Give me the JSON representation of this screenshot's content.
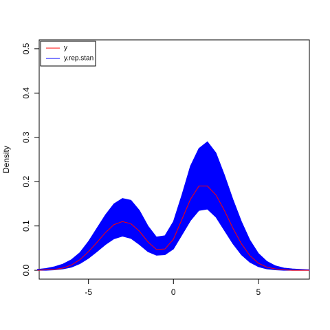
{
  "chart_data": {
    "type": "line",
    "y_label": "Density",
    "x": [
      -8,
      -7.5,
      -7,
      -6.5,
      -6,
      -5.5,
      -5,
      -4.5,
      -4,
      -3.5,
      -3,
      -2.5,
      -2,
      -1.5,
      -1,
      -0.5,
      0,
      0.5,
      1,
      1.5,
      2,
      2.5,
      3,
      3.5,
      4,
      4.5,
      5,
      5.5,
      6,
      6.5,
      7,
      7.5,
      8
    ],
    "series": [
      {
        "name": "y",
        "color": "#ff0000",
        "values": [
          0,
          0.001,
          0.002,
          0.005,
          0.012,
          0.024,
          0.042,
          0.063,
          0.085,
          0.103,
          0.11,
          0.105,
          0.088,
          0.064,
          0.047,
          0.048,
          0.07,
          0.115,
          0.16,
          0.19,
          0.19,
          0.17,
          0.135,
          0.095,
          0.06,
          0.033,
          0.016,
          0.007,
          0.003,
          0.001,
          0,
          0,
          0
        ]
      },
      {
        "name": "y.rep.stan",
        "color": "#0000ff",
        "lower": [
          0,
          0,
          0.001,
          0.003,
          0.007,
          0.015,
          0.027,
          0.042,
          0.058,
          0.071,
          0.077,
          0.072,
          0.058,
          0.042,
          0.034,
          0.035,
          0.048,
          0.08,
          0.112,
          0.135,
          0.138,
          0.12,
          0.09,
          0.06,
          0.035,
          0.018,
          0.008,
          0.003,
          0.001,
          0,
          0,
          0,
          0
        ],
        "upper": [
          0.002,
          0.004,
          0.008,
          0.014,
          0.024,
          0.04,
          0.065,
          0.095,
          0.125,
          0.15,
          0.162,
          0.158,
          0.135,
          0.1,
          0.075,
          0.078,
          0.11,
          0.17,
          0.235,
          0.275,
          0.29,
          0.265,
          0.215,
          0.16,
          0.11,
          0.068,
          0.038,
          0.02,
          0.01,
          0.005,
          0.003,
          0.002,
          0.001
        ]
      }
    ],
    "xlim": [
      -7.9,
      8
    ],
    "xticks": [
      -5,
      0,
      5
    ],
    "ylim": [
      -0.02,
      0.52
    ],
    "yticks": [
      {
        "value": 0,
        "label": "0.0"
      },
      0.1,
      0.2,
      0.3,
      0.4,
      0.5
    ],
    "legend": "top-left"
  }
}
